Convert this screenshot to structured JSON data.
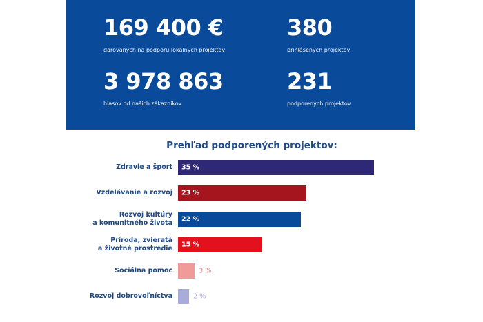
{
  "stats": [
    {
      "value": "169 400 €",
      "label": "darovaných na podporu lokálnych projektov"
    },
    {
      "value": "380",
      "label": "prihlásených projektov"
    },
    {
      "value": "3 978 863",
      "label": "hlasov od našich zákazníkov"
    },
    {
      "value": "231",
      "label": "podporených projektov"
    }
  ],
  "colors": {
    "panel": "#0a4a9b",
    "text": "#1f4a86"
  },
  "chart_data": {
    "type": "bar",
    "orientation": "horizontal",
    "title": "Prehľad podporených projektov:",
    "unit": "%",
    "categories": [
      "Zdravie a šport",
      "Vzdelávanie a rozvoj",
      "Rozvoj kultúry\na komunitného života",
      "Príroda, zvieratá\na životné prostredie",
      "Sociálna pomoc",
      "Rozvoj dobrovoľníctva"
    ],
    "values": [
      35,
      23,
      22,
      15,
      3,
      2
    ],
    "value_labels": [
      "35 %",
      "23 %",
      "22 %",
      "15 %",
      "3 %",
      "2 %"
    ],
    "bar_colors": [
      "#2e2876",
      "#a5151d",
      "#0a4a9a",
      "#e3101e",
      "#f09a9a",
      "#a9abd9"
    ],
    "label_colors": [
      "#ffffff",
      "#ffffff",
      "#ffffff",
      "#ffffff",
      "#e88a8a",
      "#a9abd9"
    ]
  }
}
